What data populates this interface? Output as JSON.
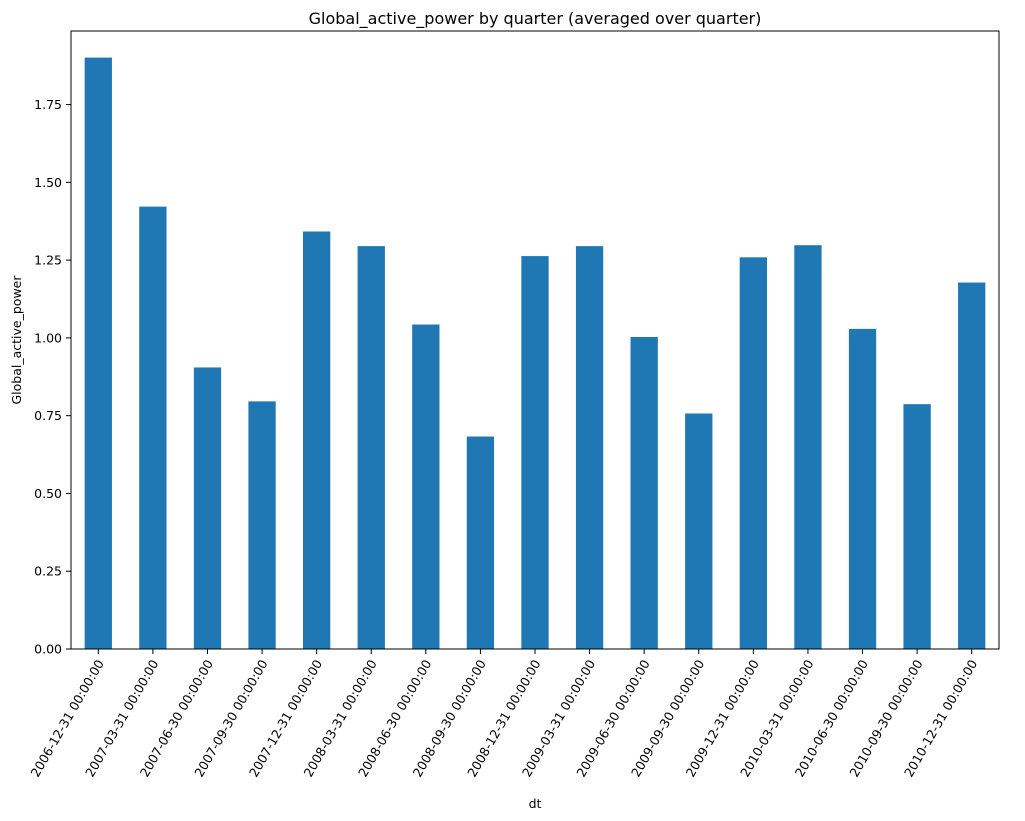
{
  "chart_data": {
    "type": "bar",
    "title": "Global_active_power by quarter (averaged over quarter)",
    "xlabel": "dt",
    "ylabel": "Global_active_power",
    "ylim": [
      0,
      1.9865
    ],
    "yticks": [
      0.0,
      0.25,
      0.5,
      0.75,
      1.0,
      1.25,
      1.5,
      1.75
    ],
    "ytick_labels": [
      "0.00",
      "0.25",
      "0.50",
      "0.75",
      "1.00",
      "1.25",
      "1.50",
      "1.75"
    ],
    "grid": false,
    "legend": "none",
    "bar_color": "#1f77b4",
    "categories": [
      "2006-12-31 00:00:00",
      "2007-03-31 00:00:00",
      "2007-06-30 00:00:00",
      "2007-09-30 00:00:00",
      "2007-12-31 00:00:00",
      "2008-03-31 00:00:00",
      "2008-06-30 00:00:00",
      "2008-09-30 00:00:00",
      "2008-12-31 00:00:00",
      "2009-03-31 00:00:00",
      "2009-06-30 00:00:00",
      "2009-09-30 00:00:00",
      "2009-12-31 00:00:00",
      "2010-03-31 00:00:00",
      "2010-06-30 00:00:00",
      "2010-09-30 00:00:00",
      "2010-12-31 00:00:00"
    ],
    "values": [
      1.901,
      1.422,
      0.905,
      0.796,
      1.342,
      1.295,
      1.043,
      0.683,
      1.263,
      1.295,
      1.003,
      0.757,
      1.259,
      1.298,
      1.029,
      0.787,
      1.178
    ]
  }
}
